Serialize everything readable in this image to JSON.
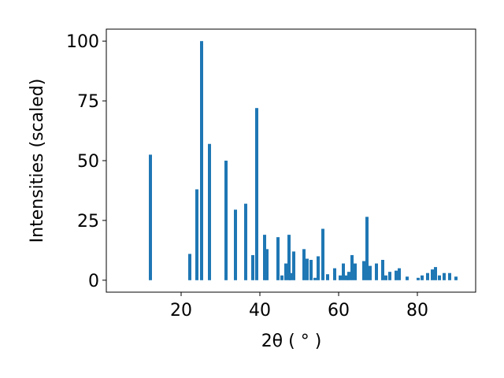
{
  "chart_data": {
    "type": "bar",
    "xlabel": "2θ ( ° )",
    "ylabel": "Intensities (scaled)",
    "color": "#1f77b4",
    "x": [
      12.2,
      22.2,
      24.0,
      25.2,
      27.2,
      31.4,
      33.8,
      36.4,
      38.2,
      39.2,
      41.2,
      41.8,
      44.6,
      45.6,
      46.6,
      47.4,
      47.8,
      48.6,
      51.2,
      52.0,
      53.0,
      54.0,
      54.8,
      56.0,
      57.2,
      59.0,
      60.4,
      61.2,
      62.0,
      62.6,
      63.4,
      64.2,
      66.4,
      67.2,
      68.0,
      69.6,
      71.2,
      72.0,
      73.0,
      74.6,
      75.4,
      77.4,
      80.2,
      81.2,
      82.6,
      83.8,
      84.6,
      85.6,
      86.8,
      88.2,
      89.8
    ],
    "values": [
      52.5,
      11,
      38,
      100,
      57,
      50,
      29.5,
      32,
      10.5,
      72,
      19,
      13,
      18,
      2,
      7,
      19,
      3,
      12,
      13,
      9,
      8.5,
      1,
      10,
      21.5,
      2.5,
      5,
      2,
      7,
      2,
      3.5,
      10.5,
      7,
      8,
      26.5,
      6,
      7,
      8.5,
      2,
      3.5,
      4,
      5,
      1.5,
      1,
      2,
      3,
      4.5,
      5.5,
      2,
      3,
      3,
      1.5
    ],
    "xlim": [
      1,
      94.8
    ],
    "ylim": [
      -5,
      105
    ],
    "xticks": [
      20,
      40,
      60,
      80
    ],
    "yticks": [
      0,
      25,
      50,
      75,
      100
    ]
  }
}
